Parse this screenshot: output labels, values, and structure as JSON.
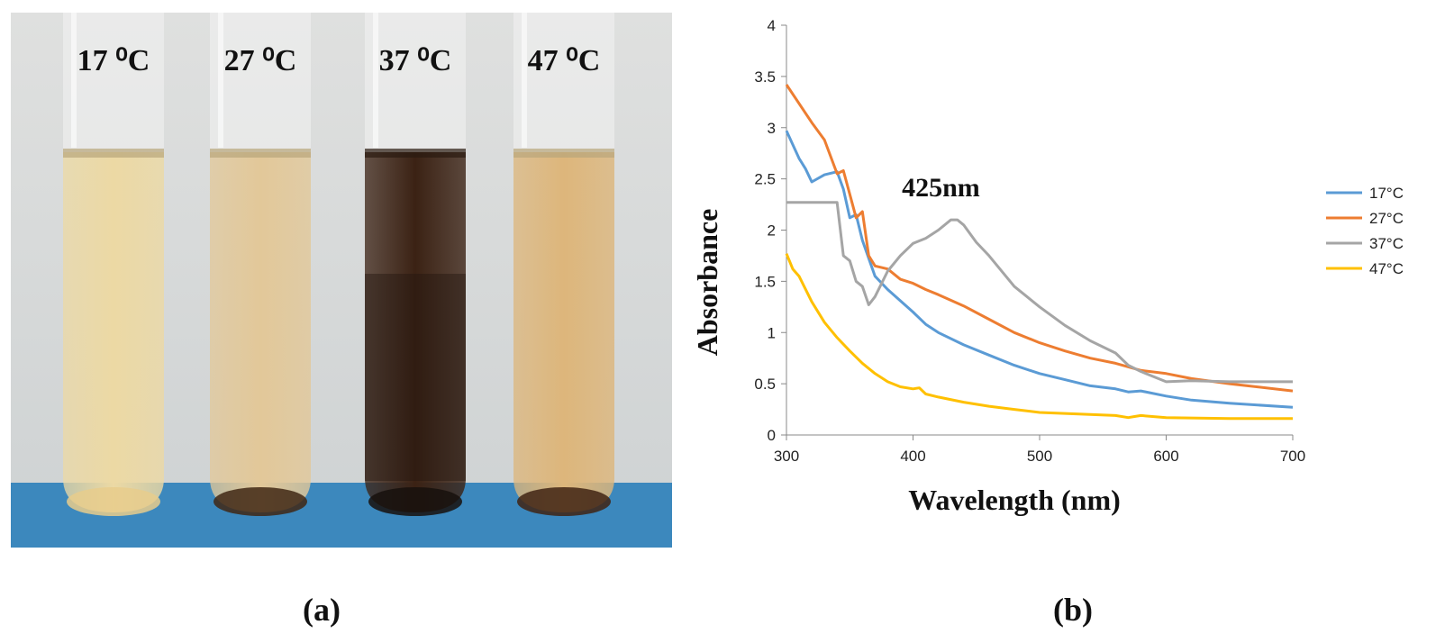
{
  "photo": {
    "tubes": [
      {
        "label": "17 ⁰C",
        "liquid_color": "#ecd9a4",
        "sediment_color": "#e7cd8c"
      },
      {
        "label": "27 ⁰C",
        "liquid_color": "#e2c899",
        "sediment_color": "#3f2714"
      },
      {
        "label": "37 ⁰C",
        "liquid_color": "#3b2214",
        "sediment_color": "#17110d"
      },
      {
        "label": "47 ⁰C",
        "liquid_color": "#ddb67b",
        "sediment_color": "#402313"
      }
    ],
    "background_color": "#ced2d3",
    "bench_color": "#3c88bd"
  },
  "captions": {
    "a": "(a)",
    "b": "(b)"
  },
  "chart_data": {
    "type": "line",
    "xlabel": "Wavelength (nm)",
    "ylabel": "Absorbance",
    "xlim": [
      300,
      700
    ],
    "ylim": [
      0,
      4
    ],
    "x_ticks": [
      300,
      400,
      500,
      600,
      700
    ],
    "y_ticks": [
      0,
      0.5,
      1,
      1.5,
      2,
      2.5,
      3,
      3.5,
      4
    ],
    "y_tick_labels": [
      "0",
      "0.5",
      "1",
      "1.5",
      "2",
      "2.5",
      "3",
      "3.5",
      "4"
    ],
    "grid": false,
    "legend_position": "right",
    "annotations": [
      {
        "text": "425nm",
        "x": 432,
        "y": 2.4
      }
    ],
    "series": [
      {
        "name": "17°C",
        "color": "#5b9bd5",
        "x": [
          300,
          310,
          315,
          320,
          330,
          340,
          345,
          350,
          355,
          360,
          370,
          380,
          400,
          410,
          420,
          440,
          460,
          480,
          500,
          520,
          540,
          560,
          570,
          580,
          600,
          620,
          650,
          700
        ],
        "y": [
          2.97,
          2.7,
          2.6,
          2.47,
          2.54,
          2.57,
          2.4,
          2.12,
          2.15,
          1.9,
          1.55,
          1.42,
          1.2,
          1.08,
          1.0,
          0.88,
          0.78,
          0.68,
          0.6,
          0.54,
          0.48,
          0.45,
          0.42,
          0.43,
          0.38,
          0.34,
          0.31,
          0.27
        ]
      },
      {
        "name": "27°C",
        "color": "#ed7d31",
        "x": [
          300,
          320,
          330,
          340,
          345,
          350,
          355,
          360,
          365,
          370,
          380,
          390,
          400,
          410,
          420,
          440,
          460,
          480,
          500,
          520,
          540,
          560,
          580,
          600,
          620,
          650,
          700
        ],
        "y": [
          3.42,
          3.05,
          2.88,
          2.55,
          2.58,
          2.35,
          2.12,
          2.18,
          1.75,
          1.65,
          1.62,
          1.52,
          1.48,
          1.42,
          1.37,
          1.26,
          1.13,
          1.0,
          0.9,
          0.82,
          0.75,
          0.7,
          0.63,
          0.6,
          0.55,
          0.5,
          0.43
        ]
      },
      {
        "name": "37°C",
        "color": "#a5a5a5",
        "x": [
          300,
          340,
          345,
          350,
          355,
          360,
          365,
          370,
          380,
          390,
          400,
          410,
          420,
          430,
          435,
          440,
          450,
          460,
          480,
          500,
          520,
          540,
          560,
          570,
          580,
          600,
          620,
          650,
          700
        ],
        "y": [
          2.27,
          2.27,
          1.75,
          1.7,
          1.5,
          1.45,
          1.27,
          1.35,
          1.6,
          1.75,
          1.87,
          1.92,
          2.0,
          2.1,
          2.1,
          2.05,
          1.88,
          1.75,
          1.45,
          1.25,
          1.07,
          0.92,
          0.8,
          0.68,
          0.62,
          0.52,
          0.53,
          0.52,
          0.52
        ]
      },
      {
        "name": "47°C",
        "color": "#ffc000",
        "x": [
          300,
          305,
          310,
          320,
          330,
          340,
          350,
          360,
          370,
          380,
          390,
          400,
          405,
          410,
          420,
          440,
          460,
          480,
          500,
          520,
          540,
          560,
          570,
          575,
          580,
          600,
          650,
          700
        ],
        "y": [
          1.77,
          1.62,
          1.55,
          1.3,
          1.1,
          0.95,
          0.82,
          0.7,
          0.6,
          0.52,
          0.47,
          0.45,
          0.46,
          0.4,
          0.37,
          0.32,
          0.28,
          0.25,
          0.22,
          0.21,
          0.2,
          0.19,
          0.17,
          0.18,
          0.19,
          0.17,
          0.16,
          0.16
        ]
      }
    ]
  }
}
